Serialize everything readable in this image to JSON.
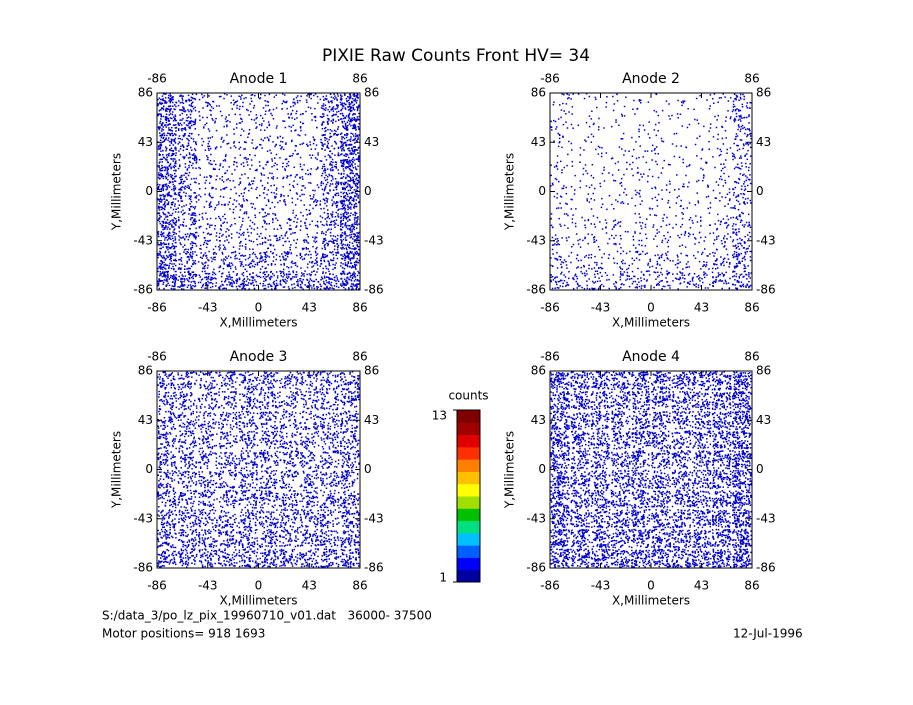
{
  "title": "PIXIE Raw Counts Front HV= 34",
  "footer": {
    "file": "S:/data_3/po_lz_pix_19960710_v01.dat   36000- 37500",
    "motor": "Motor positions= 918 1693",
    "date": "12-Jul-1996"
  },
  "colorbar": {
    "label": "counts",
    "clim": [
      1,
      13
    ],
    "ticks": [
      1,
      13
    ],
    "colors": [
      "#0000a0",
      "#0000ff",
      "#0060ff",
      "#00c0ff",
      "#00e080",
      "#00c000",
      "#a0e000",
      "#ffff00",
      "#ffc000",
      "#ff8000",
      "#ff3000",
      "#e00000",
      "#a00000",
      "#800000"
    ]
  },
  "chart_data": [
    {
      "type": "heatmap",
      "title": "Anode 1",
      "xlabel": "X,Millimeters",
      "ylabel": "Y,Millimeters",
      "xlim": [
        -86,
        86
      ],
      "ylim": [
        -86,
        86
      ],
      "xticks": [
        -86,
        -43,
        0,
        43,
        86
      ],
      "yticks": [
        -86,
        -43,
        0,
        43,
        86
      ],
      "color": "#0000d0",
      "values": [
        [
          0.45,
          0.3,
          0.12,
          0.1,
          0.12,
          0.1,
          0.14,
          0.1,
          0.3,
          0.5
        ],
        [
          0.45,
          0.28,
          0.1,
          0.08,
          0.1,
          0.1,
          0.1,
          0.1,
          0.28,
          0.5
        ],
        [
          0.45,
          0.26,
          0.1,
          0.08,
          0.1,
          0.1,
          0.1,
          0.1,
          0.26,
          0.5
        ],
        [
          0.42,
          0.25,
          0.1,
          0.1,
          0.1,
          0.1,
          0.1,
          0.1,
          0.25,
          0.48
        ],
        [
          0.42,
          0.24,
          0.1,
          0.1,
          0.12,
          0.12,
          0.1,
          0.1,
          0.24,
          0.48
        ],
        [
          0.42,
          0.24,
          0.12,
          0.1,
          0.12,
          0.12,
          0.1,
          0.12,
          0.24,
          0.48
        ],
        [
          0.42,
          0.24,
          0.12,
          0.12,
          0.12,
          0.14,
          0.12,
          0.12,
          0.25,
          0.46
        ],
        [
          0.44,
          0.26,
          0.14,
          0.14,
          0.16,
          0.16,
          0.14,
          0.14,
          0.26,
          0.46
        ],
        [
          0.46,
          0.3,
          0.2,
          0.2,
          0.22,
          0.22,
          0.2,
          0.2,
          0.3,
          0.48
        ],
        [
          0.5,
          0.38,
          0.3,
          0.3,
          0.32,
          0.32,
          0.3,
          0.3,
          0.36,
          0.5
        ]
      ]
    },
    {
      "type": "heatmap",
      "title": "Anode 2",
      "xlabel": "X,Millimeters",
      "ylabel": "Y,Millimeters",
      "xlim": [
        -86,
        86
      ],
      "ylim": [
        -86,
        86
      ],
      "xticks": [
        -86,
        -43,
        0,
        43,
        86
      ],
      "yticks": [
        -86,
        -43,
        0,
        43,
        86
      ],
      "color": "#0000d0",
      "values": [
        [
          0.08,
          0.04,
          0.04,
          0.04,
          0.05,
          0.04,
          0.04,
          0.04,
          0.06,
          0.2
        ],
        [
          0.08,
          0.04,
          0.04,
          0.04,
          0.04,
          0.04,
          0.04,
          0.04,
          0.06,
          0.2
        ],
        [
          0.07,
          0.04,
          0.04,
          0.04,
          0.05,
          0.05,
          0.04,
          0.04,
          0.06,
          0.18
        ],
        [
          0.07,
          0.04,
          0.04,
          0.05,
          0.05,
          0.05,
          0.04,
          0.04,
          0.06,
          0.16
        ],
        [
          0.07,
          0.05,
          0.05,
          0.05,
          0.06,
          0.06,
          0.05,
          0.05,
          0.07,
          0.16
        ],
        [
          0.07,
          0.05,
          0.05,
          0.06,
          0.06,
          0.06,
          0.05,
          0.05,
          0.08,
          0.16
        ],
        [
          0.08,
          0.06,
          0.06,
          0.06,
          0.07,
          0.07,
          0.06,
          0.06,
          0.1,
          0.18
        ],
        [
          0.1,
          0.07,
          0.07,
          0.07,
          0.08,
          0.08,
          0.07,
          0.07,
          0.12,
          0.22
        ],
        [
          0.14,
          0.1,
          0.1,
          0.1,
          0.12,
          0.12,
          0.1,
          0.1,
          0.16,
          0.26
        ],
        [
          0.2,
          0.16,
          0.15,
          0.16,
          0.18,
          0.18,
          0.16,
          0.16,
          0.2,
          0.3
        ]
      ]
    },
    {
      "type": "heatmap",
      "title": "Anode 3",
      "xlabel": "X,Millimeters",
      "ylabel": "Y,Millimeters",
      "xlim": [
        -86,
        86
      ],
      "ylim": [
        -86,
        86
      ],
      "xticks": [
        -86,
        -43,
        0,
        43,
        86
      ],
      "yticks": [
        -86,
        -43,
        0,
        43,
        86
      ],
      "color": "#0000d0",
      "values": [
        [
          0.3,
          0.28,
          0.25,
          0.26,
          0.3,
          0.3,
          0.26,
          0.25,
          0.28,
          0.32
        ],
        [
          0.28,
          0.26,
          0.24,
          0.24,
          0.28,
          0.28,
          0.24,
          0.24,
          0.26,
          0.3
        ],
        [
          0.28,
          0.26,
          0.24,
          0.24,
          0.28,
          0.28,
          0.24,
          0.24,
          0.26,
          0.3
        ],
        [
          0.28,
          0.26,
          0.24,
          0.24,
          0.28,
          0.28,
          0.24,
          0.24,
          0.26,
          0.3
        ],
        [
          0.3,
          0.27,
          0.25,
          0.25,
          0.3,
          0.3,
          0.25,
          0.25,
          0.27,
          0.3
        ],
        [
          0.3,
          0.27,
          0.25,
          0.25,
          0.3,
          0.3,
          0.25,
          0.25,
          0.27,
          0.3
        ],
        [
          0.3,
          0.28,
          0.26,
          0.26,
          0.3,
          0.3,
          0.26,
          0.26,
          0.28,
          0.32
        ],
        [
          0.32,
          0.3,
          0.28,
          0.28,
          0.32,
          0.32,
          0.28,
          0.28,
          0.3,
          0.34
        ],
        [
          0.34,
          0.32,
          0.3,
          0.3,
          0.34,
          0.34,
          0.3,
          0.3,
          0.32,
          0.36
        ],
        [
          0.36,
          0.34,
          0.32,
          0.32,
          0.36,
          0.36,
          0.32,
          0.32,
          0.34,
          0.38
        ]
      ]
    },
    {
      "type": "heatmap",
      "title": "Anode 4",
      "xlabel": "X,Millimeters",
      "ylabel": "Y,Millimeters",
      "xlim": [
        -86,
        86
      ],
      "ylim": [
        -86,
        86
      ],
      "xticks": [
        -86,
        -43,
        0,
        43,
        86
      ],
      "yticks": [
        -86,
        -43,
        0,
        43,
        86
      ],
      "color": "#0000d0",
      "values": [
        [
          0.48,
          0.4,
          0.38,
          0.38,
          0.4,
          0.4,
          0.38,
          0.38,
          0.42,
          0.5
        ],
        [
          0.45,
          0.36,
          0.34,
          0.34,
          0.36,
          0.36,
          0.34,
          0.34,
          0.4,
          0.5
        ],
        [
          0.44,
          0.35,
          0.33,
          0.33,
          0.35,
          0.35,
          0.33,
          0.33,
          0.4,
          0.5
        ],
        [
          0.44,
          0.35,
          0.33,
          0.33,
          0.35,
          0.35,
          0.33,
          0.33,
          0.4,
          0.5
        ],
        [
          0.44,
          0.35,
          0.33,
          0.33,
          0.36,
          0.36,
          0.33,
          0.33,
          0.4,
          0.5
        ],
        [
          0.44,
          0.35,
          0.34,
          0.34,
          0.36,
          0.36,
          0.34,
          0.34,
          0.4,
          0.5
        ],
        [
          0.45,
          0.36,
          0.35,
          0.35,
          0.37,
          0.37,
          0.35,
          0.35,
          0.42,
          0.52
        ],
        [
          0.46,
          0.38,
          0.36,
          0.36,
          0.38,
          0.38,
          0.36,
          0.36,
          0.42,
          0.52
        ],
        [
          0.48,
          0.4,
          0.38,
          0.38,
          0.4,
          0.4,
          0.38,
          0.38,
          0.44,
          0.54
        ],
        [
          0.5,
          0.44,
          0.42,
          0.42,
          0.44,
          0.44,
          0.42,
          0.42,
          0.46,
          0.55
        ]
      ]
    }
  ]
}
